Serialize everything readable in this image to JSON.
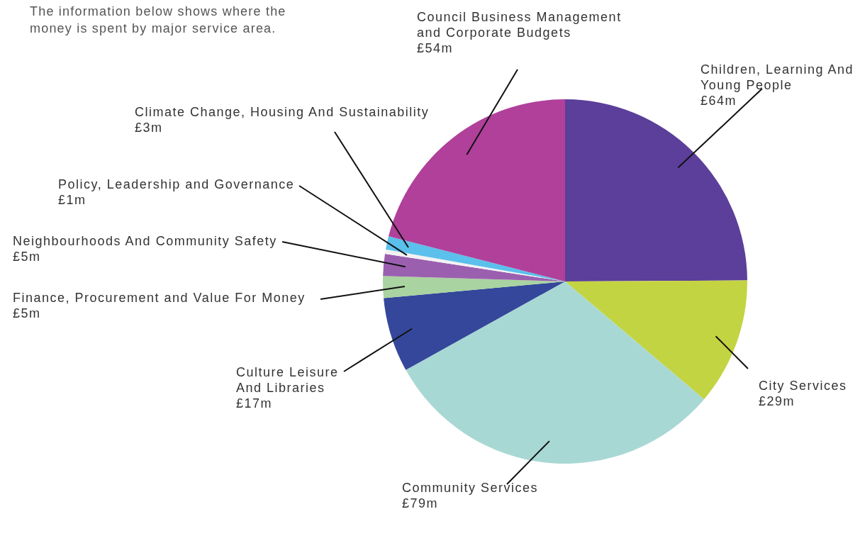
{
  "chart_data": {
    "type": "pie",
    "title": "The information below shows where the money is spent by major service area.",
    "categories": [
      "Children, Learning And Young People",
      "City Services",
      "Community Services",
      "Culture Leisure And Libraries",
      "Finance, Procurement and Value For Money",
      "Neighbourhoods And Community Safety",
      "Policy, Leadership and Governance",
      "Climate Change, Housing And Sustainability",
      "Council Business Management and Corporate Budgets"
    ],
    "values": [
      64,
      29,
      79,
      17,
      5,
      5,
      1,
      3,
      54
    ],
    "value_labels": [
      "£64m",
      "£29m",
      "£79m",
      "£17m",
      "£5m",
      "£5m",
      "£1m",
      "£3m",
      "£54m"
    ],
    "colors": [
      "#5b3f9a",
      "#c3d443",
      "#a8d8d4",
      "#34479a",
      "#a9d3a0",
      "#9b5fb0",
      "#f2f2f2",
      "#5bc0eb",
      "#b0409a"
    ]
  }
}
